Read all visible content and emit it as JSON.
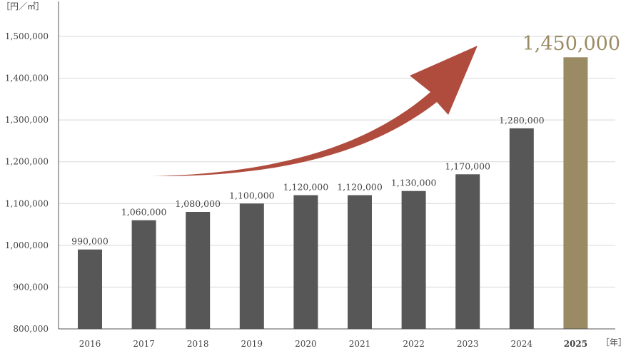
{
  "chart_data": {
    "type": "bar",
    "yunit": "［円／㎡］",
    "xunit": "［年］",
    "categories": [
      "2016",
      "2017",
      "2018",
      "2019",
      "2020",
      "2021",
      "2022",
      "2023",
      "2024",
      "2025"
    ],
    "values": [
      990000,
      1060000,
      1080000,
      1100000,
      1120000,
      1120000,
      1130000,
      1170000,
      1280000,
      1450000
    ],
    "data_labels": [
      "990,000",
      "1,060,000",
      "1,080,000",
      "1,100,000",
      "1,120,000",
      "1,120,000",
      "1,130,000",
      "1,170,000",
      "1,280,000",
      "1,450,000"
    ],
    "yticks": [
      800000,
      900000,
      1000000,
      1100000,
      1200000,
      1300000,
      1400000,
      1500000
    ],
    "ytick_labels": [
      "800,000",
      "900,000",
      "1,000,000",
      "1,100,000",
      "1,200,000",
      "1,300,000",
      "1,400,000",
      "1,500,000"
    ],
    "ylim": [
      800000,
      1500000
    ],
    "grid": true,
    "highlight_category": "2025",
    "colors": {
      "bar": "#575757",
      "highlight": "#9b8b64",
      "arrow": "#b04c3e",
      "grid": "#d8d8d8",
      "axis": "#555555"
    },
    "annotation": "upward-curved-arrow"
  }
}
